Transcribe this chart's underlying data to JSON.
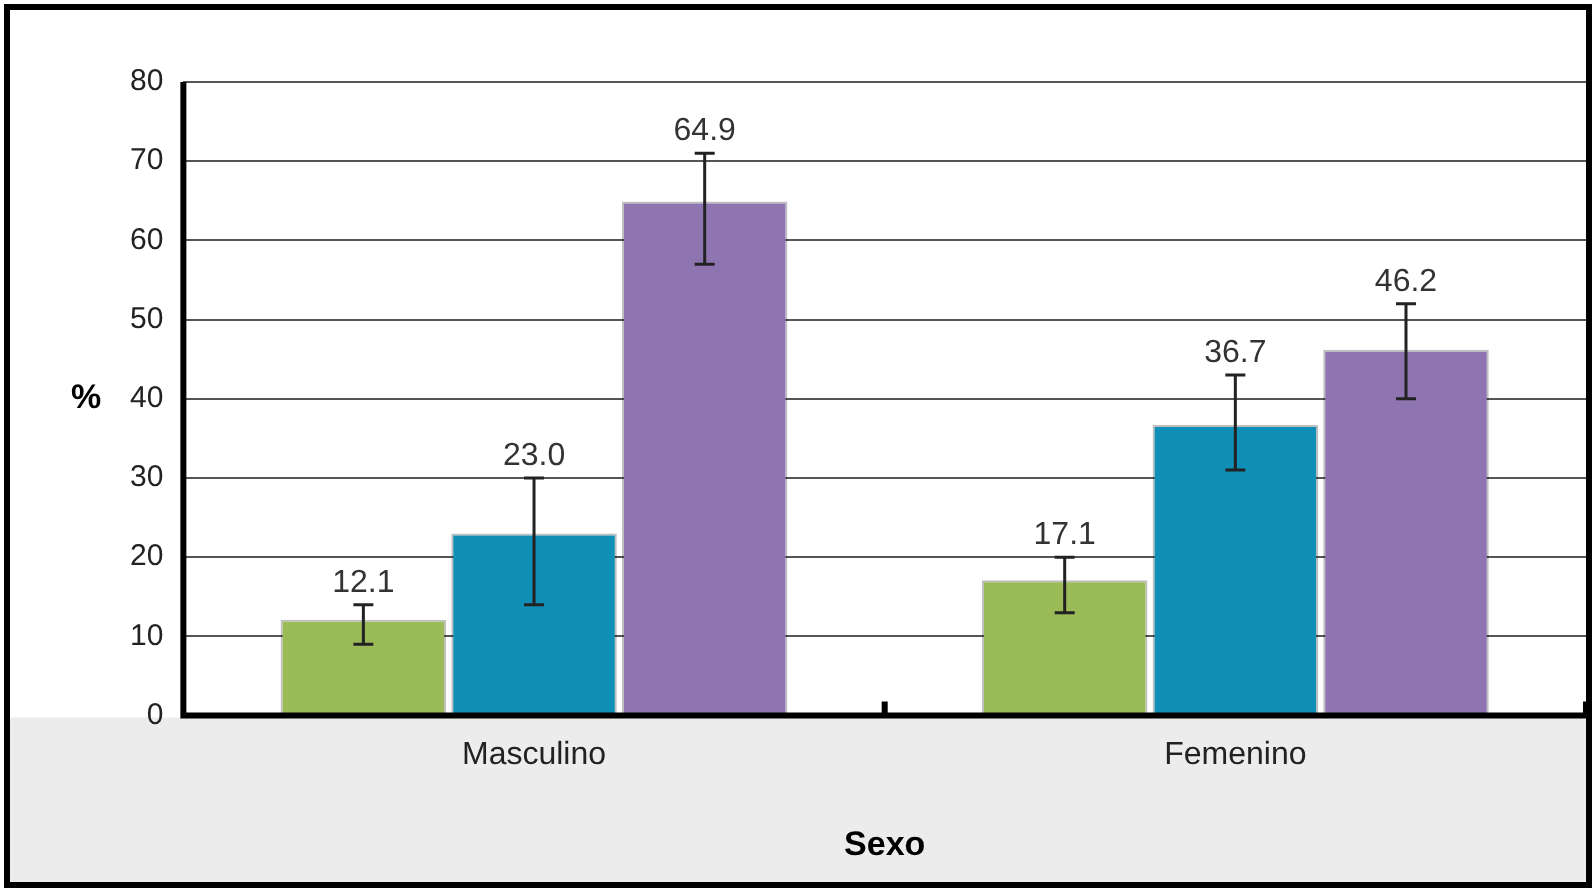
{
  "chart_data": {
    "type": "bar",
    "xlabel": "Sexo",
    "ylabel": "%",
    "categories": [
      "Masculino",
      "Femenino"
    ],
    "series": [
      {
        "color": "#9bbb59",
        "values": [
          12.1,
          17.1
        ],
        "value_labels": [
          "12.1",
          "17.1"
        ],
        "errors": [
          [
            9,
            14
          ],
          [
            13,
            20
          ]
        ]
      },
      {
        "color": "#0f8fb5",
        "values": [
          23.0,
          36.7
        ],
        "value_labels": [
          "23.0",
          "36.7"
        ],
        "errors": [
          [
            14,
            30
          ],
          [
            31,
            43
          ]
        ]
      },
      {
        "color": "#8e74b0",
        "values": [
          64.9,
          46.2
        ],
        "value_labels": [
          "64.9",
          "46.2"
        ],
        "errors": [
          [
            57,
            71
          ],
          [
            40,
            52
          ]
        ]
      }
    ],
    "ylim": [
      0,
      80
    ],
    "yticks": [
      0,
      10,
      20,
      30,
      40,
      50,
      60,
      70,
      80
    ],
    "grid": "y",
    "legend": false
  }
}
